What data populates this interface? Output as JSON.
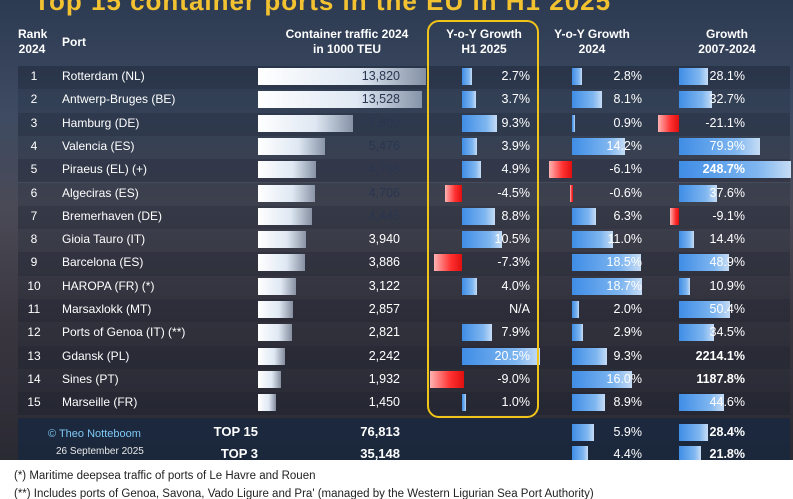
{
  "title": "Top 15 container ports in the EU in H1 2025",
  "headers": {
    "rank": [
      "Rank",
      "2024"
    ],
    "port": "Port",
    "traffic": [
      "Container traffic 2024",
      "in 1000 TEU"
    ],
    "h1": [
      "Y-o-Y Growth",
      "H1 2025"
    ],
    "yoy2024": [
      "Y-o-Y Growth",
      "2024"
    ],
    "growth": [
      "Growth",
      "2007-2024"
    ]
  },
  "chart_data": {
    "type": "table",
    "rows": [
      {
        "rank": "1",
        "port": "Rotterdam (NL)",
        "teu": 13820,
        "teu_label": "13,820",
        "h1": 2.7,
        "h1_label": "2.7%",
        "yoy": 2.8,
        "yoy_label": "2.8%",
        "g": 28.1,
        "g_label": "28.1%"
      },
      {
        "rank": "2",
        "port": "Antwerp-Bruges (BE)",
        "teu": 13528,
        "teu_label": "13,528",
        "h1": 3.7,
        "h1_label": "3.7%",
        "yoy": 8.1,
        "yoy_label": "8.1%",
        "g": 32.7,
        "g_label": "32.7%"
      },
      {
        "rank": "3",
        "port": "Hamburg (DE)",
        "teu": 7800,
        "teu_label": "7,800",
        "h1": 9.3,
        "h1_label": "9.3%",
        "yoy": 0.9,
        "yoy_label": "0.9%",
        "g": -21.1,
        "g_label": "-21.1%"
      },
      {
        "rank": "4",
        "port": "Valencia (ES)",
        "teu": 5476,
        "teu_label": "5,476",
        "h1": 3.9,
        "h1_label": "3.9%",
        "yoy": 14.2,
        "yoy_label": "14.2%",
        "g": 79.9,
        "g_label": "79.9%"
      },
      {
        "rank": "5",
        "port": "Piraeus (EL) (+)",
        "teu": 4788,
        "teu_label": "4,788",
        "h1": 4.9,
        "h1_label": "4.9%",
        "yoy": -6.1,
        "yoy_label": "-6.1%",
        "g": 248.7,
        "g_label": "248.7%"
      },
      {
        "rank": "6",
        "port": "Algeciras (ES)",
        "teu": 4706,
        "teu_label": "4,706",
        "h1": -4.5,
        "h1_label": "-4.5%",
        "yoy": -0.6,
        "yoy_label": "-0.6%",
        "g": 37.6,
        "g_label": "37.6%"
      },
      {
        "rank": "7",
        "port": "Bremerhaven (DE)",
        "teu": 4445,
        "teu_label": "4,445",
        "h1": 8.8,
        "h1_label": "8.8%",
        "yoy": 6.3,
        "yoy_label": "6.3%",
        "g": -9.1,
        "g_label": "-9.1%"
      },
      {
        "rank": "8",
        "port": "Gioia Tauro (IT)",
        "teu": 3940,
        "teu_label": "3,940",
        "h1": 10.5,
        "h1_label": "10.5%",
        "yoy": 11.0,
        "yoy_label": "11.0%",
        "g": 14.4,
        "g_label": "14.4%"
      },
      {
        "rank": "9",
        "port": "Barcelona (ES)",
        "teu": 3886,
        "teu_label": "3,886",
        "h1": -7.3,
        "h1_label": "-7.3%",
        "yoy": 18.5,
        "yoy_label": "18.5%",
        "g": 48.9,
        "g_label": "48.9%"
      },
      {
        "rank": "10",
        "port": "HAROPA (FR) (*)",
        "teu": 3122,
        "teu_label": "3,122",
        "h1": 4.0,
        "h1_label": "4.0%",
        "yoy": 18.7,
        "yoy_label": "18.7%",
        "g": 10.9,
        "g_label": "10.9%"
      },
      {
        "rank": "11",
        "port": "Marsaxlokk (MT)",
        "teu": 2857,
        "teu_label": "2,857",
        "h1": null,
        "h1_label": "N/A",
        "yoy": 2.0,
        "yoy_label": "2.0%",
        "g": 50.4,
        "g_label": "50.4%"
      },
      {
        "rank": "12",
        "port": "Ports of Genoa (IT) (**)",
        "teu": 2821,
        "teu_label": "2,821",
        "h1": 7.9,
        "h1_label": "7.9%",
        "yoy": 2.9,
        "yoy_label": "2.9%",
        "g": 34.5,
        "g_label": "34.5%"
      },
      {
        "rank": "13",
        "port": "Gdansk (PL)",
        "teu": 2242,
        "teu_label": "2,242",
        "h1": 20.5,
        "h1_label": "20.5%",
        "yoy": 9.3,
        "yoy_label": "9.3%",
        "g": 2214.1,
        "g_label": "2214.1%"
      },
      {
        "rank": "14",
        "port": "Sines (PT)",
        "teu": 1932,
        "teu_label": "1,932",
        "h1": -9.0,
        "h1_label": "-9.0%",
        "yoy": 16.0,
        "yoy_label": "16.0%",
        "g": 1187.8,
        "g_label": "1187.8%"
      },
      {
        "rank": "15",
        "port": "Marseille (FR)",
        "teu": 1450,
        "teu_label": "1,450",
        "h1": 1.0,
        "h1_label": "1.0%",
        "yoy": 8.9,
        "yoy_label": "8.9%",
        "g": 44.6,
        "g_label": "44.6%"
      }
    ],
    "totals": [
      {
        "label": "TOP 15",
        "teu_label": "76,813",
        "yoy": 5.9,
        "yoy_label": "5.9%",
        "g": 28.4,
        "g_label": "28.4%"
      },
      {
        "label": "TOP 3",
        "teu_label": "35,148",
        "yoy": 4.4,
        "yoy_label": "4.4%",
        "g": 21.8,
        "g_label": "21.8%"
      }
    ]
  },
  "credit": "© Theo Notteboom",
  "date": "26 September 2025",
  "notes": [
    "(*) Maritime deepsea traffic of ports of Le Havre and Rouen",
    "(**) Includes ports of Genoa, Savona, Vado Ligure and Pra' (managed by the Western Ligurian Sea Port Authority)"
  ],
  "colors": {
    "positive": "#4a90e2",
    "negative": "#ff2a2a",
    "highlight": "#f0c419",
    "title": "#f2c230"
  }
}
